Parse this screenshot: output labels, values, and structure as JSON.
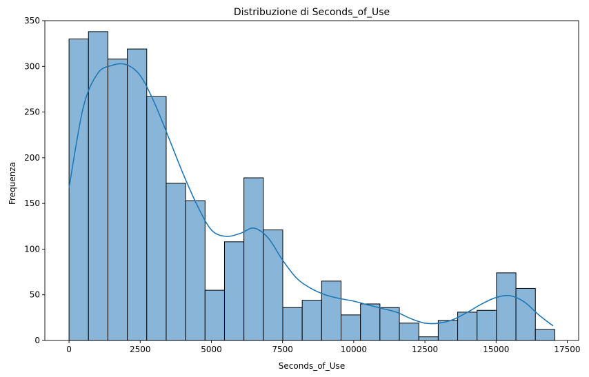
{
  "chart_data": {
    "type": "bar",
    "title": "Distribuzione di Seconds_of_Use",
    "xlabel": "Seconds_of_Use",
    "ylabel": "Frequenza",
    "xlim": [
      -850,
      17900
    ],
    "ylim": [
      0,
      350
    ],
    "xticks": [
      0,
      2500,
      5000,
      7500,
      10000,
      12500,
      15000,
      17500
    ],
    "yticks": [
      0,
      50,
      100,
      150,
      200,
      250,
      300,
      350
    ],
    "grid": false,
    "bin_start": 0,
    "bin_width": 682.5,
    "values": [
      330,
      338,
      308,
      319,
      267,
      172,
      153,
      55,
      108,
      178,
      121,
      36,
      44,
      65,
      28,
      40,
      36,
      19,
      4,
      22,
      31,
      33,
      74,
      57,
      12
    ],
    "bar_color": "#89B6D8",
    "edge_color": "#000000",
    "kde": {
      "color": "#1f77b4",
      "x": [
        0,
        500,
        1000,
        1500,
        2000,
        2500,
        3000,
        3500,
        4000,
        4500,
        5000,
        5500,
        6000,
        6500,
        7000,
        7500,
        8000,
        8500,
        9000,
        9500,
        10000,
        10500,
        11000,
        11500,
        12000,
        12500,
        13000,
        13500,
        14000,
        14500,
        15000,
        15500,
        16000,
        16500,
        17000
      ],
      "y": [
        167,
        255,
        292,
        301,
        302,
        290,
        260,
        222,
        183,
        148,
        121,
        114,
        117,
        123,
        112,
        88,
        68,
        57,
        50,
        46,
        43,
        39,
        35,
        31,
        24,
        19,
        19,
        23,
        31,
        40,
        47,
        49,
        42,
        28,
        16
      ]
    }
  }
}
